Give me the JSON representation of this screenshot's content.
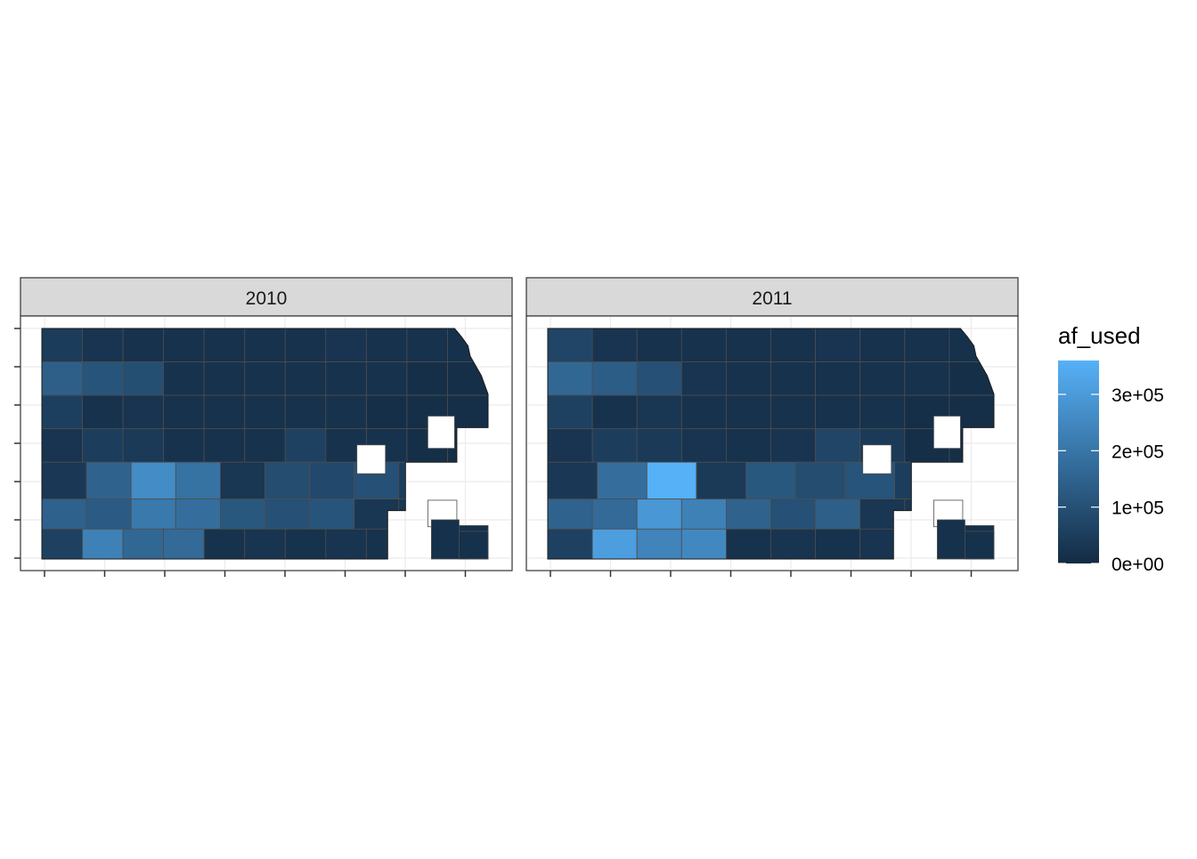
{
  "chart_data": {
    "type": "heatmap",
    "subtype": "faceted choropleth map",
    "facets": [
      {
        "label": "2010",
        "regions": [
          {
            "row": 1,
            "values": [
              45000,
              25000,
              20000,
              20000,
              20000,
              20000,
              20000,
              25000,
              20000,
              20000,
              15000
            ]
          },
          {
            "row": 2,
            "values": [
              140000,
              110000,
              95000,
              20000,
              20000,
              20000,
              20000,
              20000,
              20000,
              10000,
              10000
            ]
          },
          {
            "row": 3,
            "values": [
              55000,
              20000,
              25000,
              20000,
              20000,
              20000,
              20000,
              20000,
              10000,
              10000,
              10000
            ]
          },
          {
            "row": 4,
            "values": [
              25000,
              50000,
              40000,
              20000,
              20000,
              20000,
              60000,
              20000,
              20000,
              10000,
              10000
            ]
          },
          {
            "row": 5,
            "values": [
              35000,
              150000,
              260000,
              190000,
              30000,
              90000,
              80000,
              100000,
              50000,
              15000
            ]
          },
          {
            "row": 6,
            "values": [
              145000,
              130000,
              210000,
              180000,
              120000,
              100000,
              110000,
              30000,
              30000,
              15000
            ]
          },
          {
            "row": 7,
            "values": [
              60000,
              230000,
              160000,
              170000,
              20000,
              25000,
              20000,
              25000,
              20000,
              20000,
              15000
            ]
          }
        ]
      },
      {
        "label": "2011",
        "regions": [
          {
            "row": 1,
            "values": [
              70000,
              25000,
              20000,
              20000,
              20000,
              20000,
              25000,
              20000,
              20000,
              15000
            ]
          },
          {
            "row": 2,
            "values": [
              160000,
              135000,
              100000,
              25000,
              20000,
              20000,
              20000,
              20000,
              20000,
              10000
            ]
          },
          {
            "row": 3,
            "values": [
              60000,
              20000,
              30000,
              20000,
              20000,
              20000,
              20000,
              20000,
              10000,
              10000
            ]
          },
          {
            "row": 4,
            "values": [
              25000,
              50000,
              40000,
              25000,
              20000,
              25000,
              70000,
              40000,
              10000,
              10000
            ]
          },
          {
            "row": 5,
            "values": [
              35000,
              180000,
              360000,
              40000,
              120000,
              90000,
              110000,
              50000,
              15000
            ]
          },
          {
            "row": 6,
            "values": [
              150000,
              170000,
              290000,
              230000,
              150000,
              100000,
              140000,
              30000,
              30000,
              15000
            ]
          },
          {
            "row": 7,
            "values": [
              60000,
              310000,
              240000,
              250000,
              20000,
              25000,
              20000,
              25000,
              20000,
              20000
            ]
          }
        ]
      }
    ],
    "legend": {
      "title": "af_used",
      "ticks": [
        {
          "label": "0e+00",
          "value": 0
        },
        {
          "label": "1e+05",
          "value": 100000
        },
        {
          "label": "2e+05",
          "value": 200000
        },
        {
          "label": "3e+05",
          "value": 300000
        }
      ],
      "range": [
        0,
        360000
      ],
      "color_low": "#132B43",
      "color_high": "#56B1F7",
      "placement": "right"
    },
    "axes": {
      "x_tick_labels_shown": false,
      "y_tick_labels_shown": false,
      "grid": true
    }
  }
}
